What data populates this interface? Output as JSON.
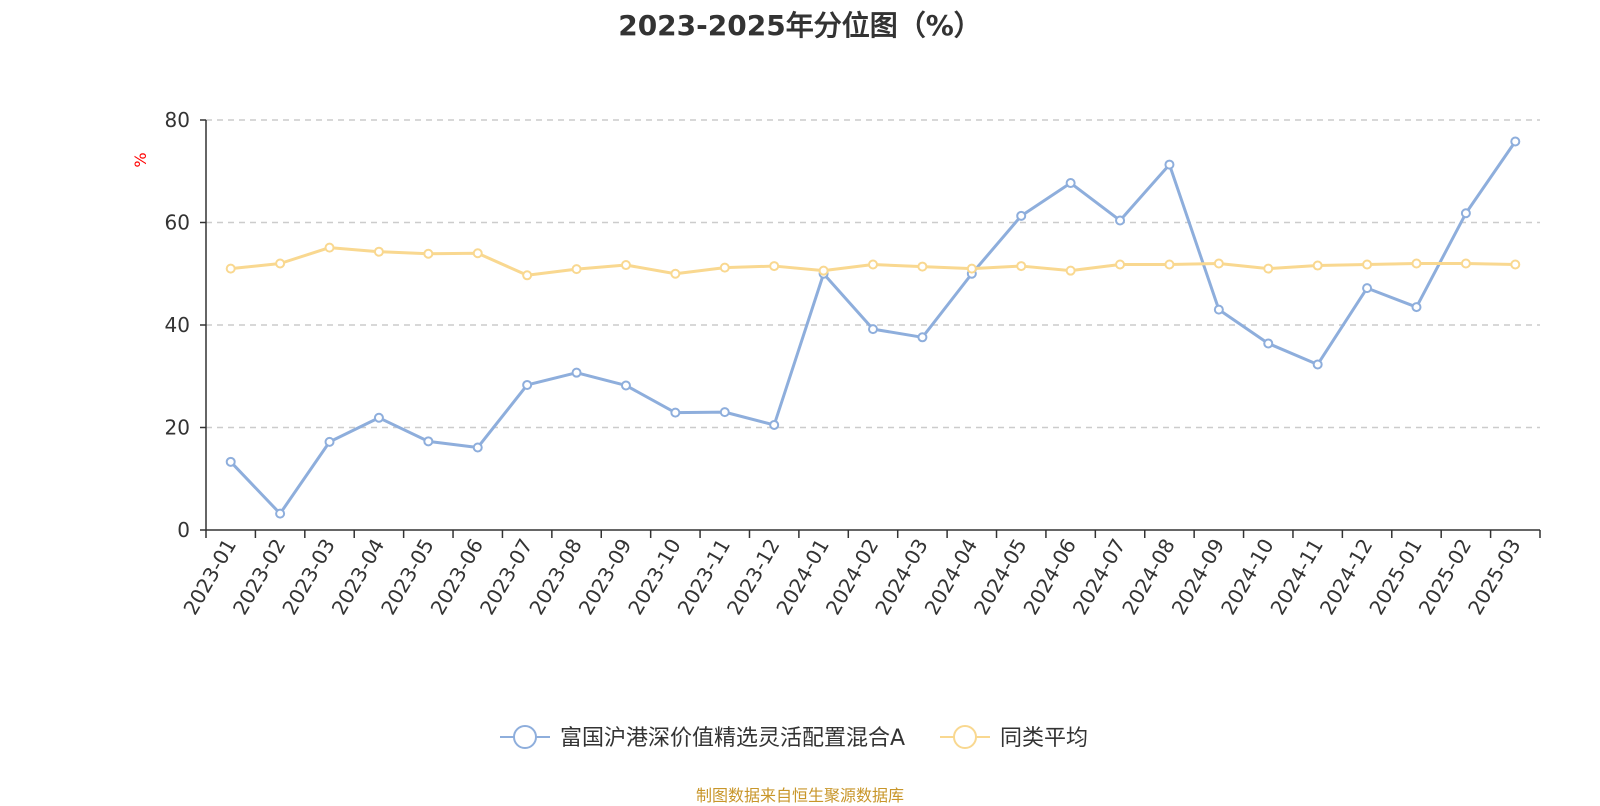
{
  "title": "2023-2025年分位图（%）",
  "source": "制图数据来自恒生聚源数据库",
  "chart_data": {
    "type": "line",
    "title": "2023-2025年分位图（%）",
    "ylabel": "%",
    "xlabel": "",
    "ylim": [
      0,
      80
    ],
    "yticks": [
      "0",
      "20",
      "40",
      "60",
      "80"
    ],
    "grid": true,
    "legend": "bottom-center",
    "categories": [
      "2023-01",
      "2023-02",
      "2023-03",
      "2023-04",
      "2023-05",
      "2023-06",
      "2023-07",
      "2023-08",
      "2023-09",
      "2023-10",
      "2023-11",
      "2023-12",
      "2024-01",
      "2024-02",
      "2024-03",
      "2024-04",
      "2024-05",
      "2024-06",
      "2024-07",
      "2024-08",
      "2024-09",
      "2024-10",
      "2024-11",
      "2024-12",
      "2025-01",
      "2025-02",
      "2025-03"
    ],
    "series": [
      {
        "name": "富国沪港深价值精选灵活配置混合A",
        "color": "#8eaedc",
        "values": [
          13.3,
          3.2,
          17.2,
          21.9,
          17.3,
          16.1,
          28.3,
          30.7,
          28.2,
          22.9,
          23.0,
          20.5,
          50.0,
          39.2,
          37.6,
          50.0,
          61.3,
          67.7,
          60.4,
          71.3,
          43.0,
          36.4,
          32.3,
          47.2,
          43.5,
          61.8,
          75.8
        ]
      },
      {
        "name": "同类平均",
        "color": "#f9d890",
        "values": [
          51.0,
          52.0,
          55.1,
          54.3,
          53.9,
          54.0,
          49.7,
          50.9,
          51.7,
          50.0,
          51.2,
          51.5,
          50.6,
          51.8,
          51.4,
          51.0,
          51.5,
          50.6,
          51.8,
          51.8,
          52.0,
          51.0,
          51.6,
          51.8,
          52.0,
          52.0,
          51.8
        ]
      }
    ]
  }
}
